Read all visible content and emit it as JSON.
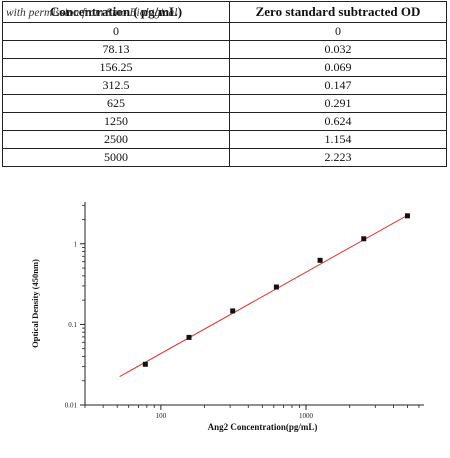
{
  "watermark": "with permission from Sino Biological",
  "table": {
    "headers": [
      "Concentration ( pg/mL)",
      "Zero standard subtracted OD"
    ],
    "rows": [
      [
        "0",
        "0"
      ],
      [
        "78.13",
        "0.032"
      ],
      [
        "156.25",
        "0.069"
      ],
      [
        "312.5",
        "0.147"
      ],
      [
        "625",
        "0.291"
      ],
      [
        "1250",
        "0.624"
      ],
      [
        "2500",
        "1.154"
      ],
      [
        "5000",
        "2.223"
      ]
    ]
  },
  "chart_data": {
    "type": "scatter",
    "xlabel": "Ang2  Concentration(pg/mL)",
    "ylabel": "Optical Density (450nm)",
    "xscale": "log",
    "yscale": "log",
    "xlim": [
      30,
      6500
    ],
    "ylim": [
      0.01,
      3.3
    ],
    "x_ticks": [
      100,
      1000
    ],
    "x_tick_labels": [
      "100",
      "1000"
    ],
    "y_ticks": [
      0.01,
      0.1,
      1
    ],
    "y_tick_labels": [
      "0.01",
      "0.1",
      "1"
    ],
    "grid": false,
    "legend": "none",
    "points": [
      {
        "x": 78.13,
        "y": 0.032
      },
      {
        "x": 156.25,
        "y": 0.069
      },
      {
        "x": 312.5,
        "y": 0.147
      },
      {
        "x": 625,
        "y": 0.291
      },
      {
        "x": 1250,
        "y": 0.624
      },
      {
        "x": 2500,
        "y": 1.154
      },
      {
        "x": 5000,
        "y": 2.223
      }
    ],
    "fit_line": {
      "x_start": 52,
      "x_end": 5200,
      "y_start": 0.0225,
      "y_end": 2.35
    },
    "marker_color": "#111111",
    "line_color": "#e0352b"
  }
}
